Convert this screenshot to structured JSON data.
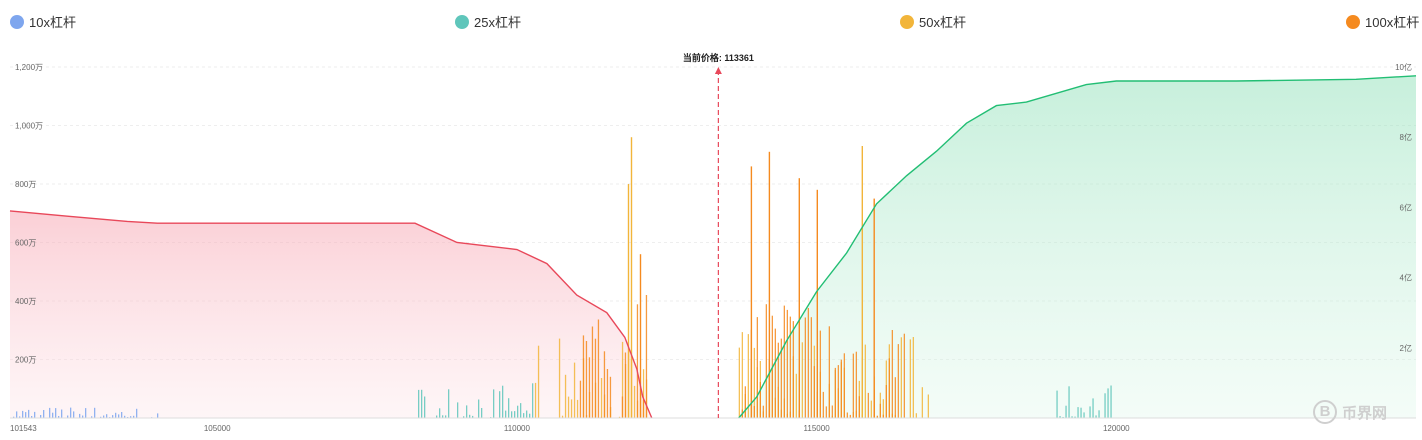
{
  "chart_data": {
    "type": "bar",
    "title": "",
    "xlabel": "",
    "ylabel": "",
    "current_price_label": "当前价格: 113361",
    "current_price": 113361,
    "xlim": [
      101543,
      125000
    ],
    "x_ticks": [
      "101543",
      "105000",
      "110000",
      "115000",
      "120000"
    ],
    "x_tick_values": [
      101543,
      105000,
      110000,
      115000,
      120000
    ],
    "ylim_left": [
      0,
      12000000
    ],
    "y_left_ticks": [
      "200万",
      "400万",
      "600万",
      "800万",
      "1,000万",
      "1,200万"
    ],
    "y_left_tick_values": [
      2000000,
      4000000,
      6000000,
      8000000,
      10000000,
      12000000
    ],
    "ylim_right": [
      0,
      1000000000
    ],
    "y_right_ticks": [
      "2亿",
      "4亿",
      "6亿",
      "8亿",
      "10亿"
    ],
    "y_right_tick_values": [
      200000000,
      400000000,
      600000000,
      800000000,
      1000000000
    ],
    "grid": true,
    "legend_position": "top",
    "series": [
      {
        "name": "10x杠杆",
        "color": "#7ea6ee",
        "ranges": [
          [
            101543,
            104000
          ]
        ],
        "typical_max": 400000
      },
      {
        "name": "25x杠杆",
        "color": "#5fc6bb",
        "ranges": [
          [
            108300,
            110300
          ],
          [
            119000,
            120000
          ]
        ],
        "typical_max": 1200000
      },
      {
        "name": "50x杠杆",
        "color": "#f2b53a",
        "ranges": [
          [
            110300,
            112200
          ],
          [
            113700,
            117000
          ]
        ],
        "typical_max": 3000000
      },
      {
        "name": "100x杠杆",
        "color": "#f58a1f",
        "ranges": [
          [
            111000,
            112200
          ],
          [
            113700,
            116500
          ]
        ],
        "typical_max": 5000000
      }
    ],
    "peak_bars": [
      {
        "x": 111850,
        "y": 8000000,
        "series": "50x杠杆"
      },
      {
        "x": 111900,
        "y": 9600000,
        "series": "50x杠杆"
      },
      {
        "x": 112050,
        "y": 5600000,
        "series": "100x杠杆"
      },
      {
        "x": 113900,
        "y": 8600000,
        "series": "100x杠杆"
      },
      {
        "x": 114200,
        "y": 9100000,
        "series": "100x杠杆"
      },
      {
        "x": 114700,
        "y": 8200000,
        "series": "100x杠杆"
      },
      {
        "x": 115000,
        "y": 7800000,
        "series": "100x杠杆"
      },
      {
        "x": 115750,
        "y": 9300000,
        "series": "50x杠杆"
      },
      {
        "x": 115950,
        "y": 7500000,
        "series": "100x杠杆"
      }
    ],
    "cumulative_short": {
      "color": "#e8485a",
      "points": [
        [
          101543,
          590000000
        ],
        [
          102500,
          575000000
        ],
        [
          103500,
          560000000
        ],
        [
          104000,
          555000000
        ],
        [
          106500,
          555000000
        ],
        [
          108300,
          555000000
        ],
        [
          109000,
          500000000
        ],
        [
          110000,
          480000000
        ],
        [
          110500,
          440000000
        ],
        [
          111000,
          350000000
        ],
        [
          111500,
          300000000
        ],
        [
          111800,
          230000000
        ],
        [
          112000,
          140000000
        ],
        [
          112100,
          60000000
        ],
        [
          112250,
          0
        ]
      ]
    },
    "cumulative_long": {
      "color": "#22be74",
      "points": [
        [
          113700,
          0
        ],
        [
          114000,
          60000000
        ],
        [
          114500,
          220000000
        ],
        [
          115000,
          360000000
        ],
        [
          115500,
          470000000
        ],
        [
          116000,
          610000000
        ],
        [
          116500,
          690000000
        ],
        [
          117000,
          760000000
        ],
        [
          117500,
          840000000
        ],
        [
          118000,
          890000000
        ],
        [
          118500,
          900000000
        ],
        [
          119500,
          950000000
        ],
        [
          120000,
          960000000
        ],
        [
          121500,
          960000000
        ],
        [
          122000,
          960000000
        ],
        [
          124000,
          965000000
        ],
        [
          125000,
          975000000
        ]
      ]
    }
  },
  "watermark": "币界网"
}
